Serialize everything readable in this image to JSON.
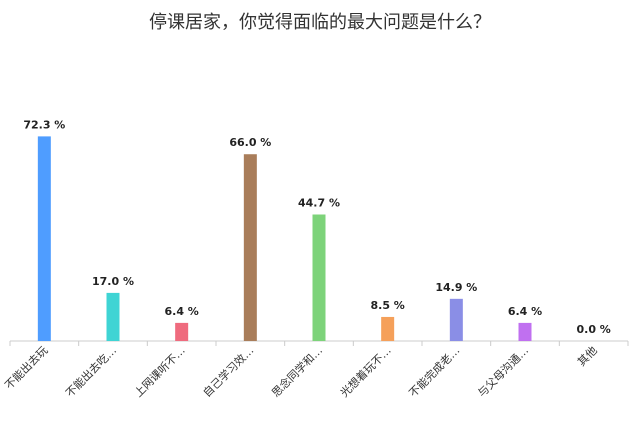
{
  "chart_data": {
    "type": "bar",
    "title": "停课居家，你觉得面临的最大问题是什么？",
    "categories": [
      "不能出去玩",
      "不能出去吃…",
      "上网课听不…",
      "自己学习效…",
      "思念同学和…",
      "光想着玩不…",
      "不能完成老…",
      "与父母沟通…",
      "其他"
    ],
    "values": [
      72.3,
      17.0,
      6.4,
      66.0,
      44.7,
      8.5,
      14.9,
      6.4,
      0.0
    ],
    "value_labels": [
      "72.3 %",
      "17.0 %",
      "6.4 %",
      "66.0 %",
      "44.7 %",
      "8.5 %",
      "14.9 %",
      "6.4 %",
      "0.0 %"
    ],
    "colors": [
      "#4f9dff",
      "#3fd4d4",
      "#ef6b7e",
      "#a97d5a",
      "#7dd37a",
      "#f5a05a",
      "#8a8ee6",
      "#c070f0",
      "#8a8ee6"
    ],
    "ylim": [
      0,
      100
    ],
    "grid": false,
    "legend": "none",
    "xlabel": "",
    "ylabel": ""
  }
}
